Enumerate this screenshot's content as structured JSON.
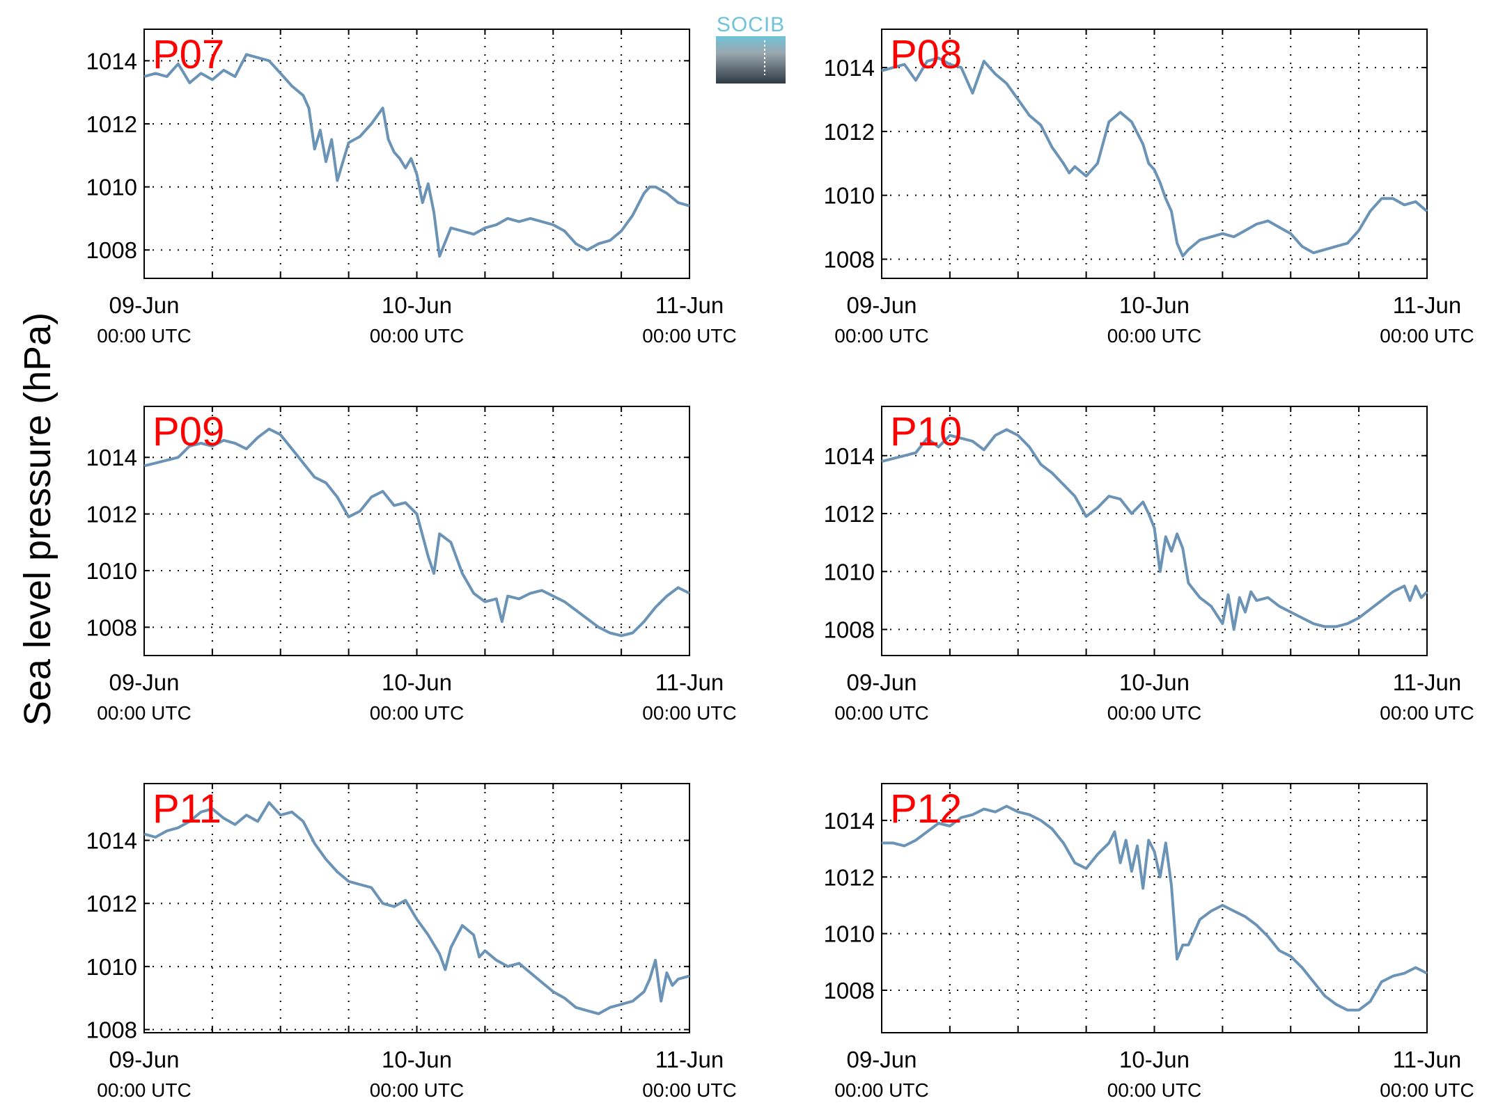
{
  "logo": {
    "text": "SOCIB"
  },
  "colors": {
    "series": "#6a93b6",
    "title": "#ff0000",
    "grid": "#000000"
  },
  "chart_data": {
    "type": "line",
    "ylabel": "Sea level pressure (hPa)",
    "x_ticks": [
      {
        "date": "09-Jun",
        "time": "00:00 UTC",
        "x": 0
      },
      {
        "date": "10-Jun",
        "time": "00:00 UTC",
        "x": 24
      },
      {
        "date": "11-Jun",
        "time": "00:00 UTC",
        "x": 48
      }
    ],
    "x_units": "hours after 09-Jun 00:00 UTC",
    "xlim": [
      0,
      48
    ],
    "x_grid_step": 6,
    "grid": "dotted",
    "panels": [
      {
        "title": "P07",
        "ylim": [
          1007.1,
          1015.0
        ],
        "yticks": [
          1008,
          1010,
          1012,
          1014
        ],
        "x": [
          0,
          1,
          2,
          3,
          4,
          5,
          6,
          7,
          8,
          9,
          10,
          11,
          12,
          13,
          14,
          14.5,
          15,
          15.5,
          16,
          16.5,
          17,
          18,
          19,
          20,
          21,
          21.5,
          22,
          22.5,
          23,
          23.5,
          24,
          24.5,
          25,
          25.5,
          26,
          27,
          28,
          29,
          30,
          31,
          32,
          33,
          34,
          35,
          36,
          37,
          38,
          39,
          40,
          41,
          42,
          43,
          44,
          44.5,
          45,
          46,
          47,
          48
        ],
        "y": [
          1013.5,
          1013.6,
          1013.5,
          1013.9,
          1013.3,
          1013.6,
          1013.4,
          1013.7,
          1013.5,
          1014.2,
          1014.1,
          1014.0,
          1013.6,
          1013.2,
          1012.9,
          1012.5,
          1011.2,
          1011.8,
          1010.8,
          1011.5,
          1010.2,
          1011.4,
          1011.6,
          1012.0,
          1012.5,
          1011.5,
          1011.1,
          1010.9,
          1010.6,
          1010.9,
          1010.4,
          1009.5,
          1010.1,
          1009.2,
          1007.8,
          1008.7,
          1008.6,
          1008.5,
          1008.7,
          1008.8,
          1009.0,
          1008.9,
          1009.0,
          1008.9,
          1008.8,
          1008.6,
          1008.2,
          1008.0,
          1008.2,
          1008.3,
          1008.6,
          1009.1,
          1009.8,
          1010.0,
          1010.0,
          1009.8,
          1009.5,
          1009.4
        ]
      },
      {
        "title": "P08",
        "ylim": [
          1007.4,
          1015.2
        ],
        "yticks": [
          1008,
          1010,
          1012,
          1014
        ],
        "x": [
          0,
          1,
          2,
          3,
          4,
          5,
          6,
          7,
          8,
          9,
          10,
          11,
          12,
          13,
          14,
          15,
          16,
          16.5,
          17,
          18,
          19,
          20,
          21,
          22,
          23,
          23.5,
          24,
          24.5,
          25,
          25.5,
          26,
          26.5,
          27,
          28,
          29,
          30,
          31,
          32,
          33,
          34,
          35,
          36,
          37,
          38,
          39,
          40,
          41,
          42,
          43,
          44,
          45,
          46,
          47,
          48
        ],
        "y": [
          1013.9,
          1014.0,
          1014.1,
          1013.6,
          1014.2,
          1014.3,
          1014.1,
          1014.0,
          1013.2,
          1014.2,
          1013.8,
          1013.5,
          1013.0,
          1012.5,
          1012.2,
          1011.5,
          1011.0,
          1010.7,
          1010.9,
          1010.6,
          1011.0,
          1012.3,
          1012.6,
          1012.3,
          1011.6,
          1011.0,
          1010.8,
          1010.4,
          1009.9,
          1009.5,
          1008.5,
          1008.1,
          1008.3,
          1008.6,
          1008.7,
          1008.8,
          1008.7,
          1008.9,
          1009.1,
          1009.2,
          1009.0,
          1008.8,
          1008.4,
          1008.2,
          1008.3,
          1008.4,
          1008.5,
          1008.9,
          1009.5,
          1009.9,
          1009.9,
          1009.7,
          1009.8,
          1009.5
        ]
      },
      {
        "title": "P09",
        "ylim": [
          1007.0,
          1015.8
        ],
        "yticks": [
          1008,
          1010,
          1012,
          1014
        ],
        "x": [
          0,
          1,
          2,
          3,
          4,
          5,
          6,
          7,
          8,
          9,
          10,
          11,
          12,
          13,
          14,
          15,
          16,
          17,
          18,
          19,
          20,
          21,
          22,
          23,
          24,
          25,
          25.5,
          26,
          27,
          28,
          29,
          30,
          31,
          31.5,
          32,
          33,
          34,
          35,
          36,
          37,
          38,
          39,
          40,
          41,
          42,
          43,
          44,
          45,
          46,
          47,
          48
        ],
        "y": [
          1013.7,
          1013.8,
          1013.9,
          1014.0,
          1014.4,
          1014.5,
          1014.4,
          1014.6,
          1014.5,
          1014.3,
          1014.7,
          1015.0,
          1014.8,
          1014.3,
          1013.8,
          1013.3,
          1013.1,
          1012.6,
          1011.9,
          1012.1,
          1012.6,
          1012.8,
          1012.3,
          1012.4,
          1012.0,
          1010.5,
          1009.9,
          1011.3,
          1011.0,
          1009.9,
          1009.2,
          1008.9,
          1009.0,
          1008.2,
          1009.1,
          1009.0,
          1009.2,
          1009.3,
          1009.1,
          1008.9,
          1008.6,
          1008.3,
          1008.0,
          1007.8,
          1007.7,
          1007.8,
          1008.2,
          1008.7,
          1009.1,
          1009.4,
          1009.2
        ]
      },
      {
        "title": "P10",
        "ylim": [
          1007.1,
          1015.7
        ],
        "yticks": [
          1008,
          1010,
          1012,
          1014
        ],
        "x": [
          0,
          1,
          2,
          3,
          4,
          5,
          6,
          7,
          8,
          9,
          10,
          11,
          12,
          13,
          14,
          15,
          16,
          17,
          18,
          19,
          20,
          21,
          22,
          23,
          23.5,
          24,
          24.5,
          25,
          25.5,
          26,
          26.5,
          27,
          28,
          29,
          30,
          30.5,
          31,
          31.5,
          32,
          32.5,
          33,
          34,
          35,
          36,
          37,
          38,
          39,
          40,
          41,
          42,
          43,
          44,
          45,
          46,
          46.5,
          47,
          47.5,
          48
        ],
        "y": [
          1013.8,
          1013.9,
          1014.0,
          1014.1,
          1014.6,
          1014.3,
          1014.7,
          1014.6,
          1014.5,
          1014.2,
          1014.7,
          1014.9,
          1014.7,
          1014.3,
          1013.7,
          1013.4,
          1013.0,
          1012.6,
          1011.9,
          1012.2,
          1012.6,
          1012.5,
          1012.0,
          1012.4,
          1012.0,
          1011.5,
          1010.0,
          1011.2,
          1010.7,
          1011.3,
          1010.8,
          1009.6,
          1009.1,
          1008.8,
          1008.2,
          1009.2,
          1008.0,
          1009.1,
          1008.6,
          1009.3,
          1009.0,
          1009.1,
          1008.8,
          1008.6,
          1008.4,
          1008.2,
          1008.1,
          1008.1,
          1008.2,
          1008.4,
          1008.7,
          1009.0,
          1009.3,
          1009.5,
          1009.0,
          1009.5,
          1009.1,
          1009.3
        ]
      },
      {
        "title": "P11",
        "ylim": [
          1007.9,
          1015.8
        ],
        "yticks": [
          1008,
          1010,
          1012,
          1014
        ],
        "x": [
          0,
          1,
          2,
          3,
          4,
          5,
          6,
          7,
          8,
          9,
          10,
          11,
          12,
          13,
          14,
          15,
          16,
          17,
          18,
          19,
          20,
          21,
          22,
          23,
          24,
          25,
          26,
          26.5,
          27,
          28,
          29,
          29.5,
          30,
          31,
          32,
          33,
          34,
          35,
          36,
          37,
          38,
          39,
          40,
          41,
          42,
          43,
          44,
          44.5,
          45,
          45.5,
          46,
          46.5,
          47,
          48
        ],
        "y": [
          1014.2,
          1014.1,
          1014.3,
          1014.4,
          1014.6,
          1014.9,
          1015.0,
          1014.7,
          1014.5,
          1014.8,
          1014.6,
          1015.2,
          1014.8,
          1014.9,
          1014.6,
          1013.9,
          1013.4,
          1013.0,
          1012.7,
          1012.6,
          1012.5,
          1012.0,
          1011.9,
          1012.1,
          1011.5,
          1011.0,
          1010.4,
          1009.9,
          1010.6,
          1011.3,
          1011.0,
          1010.3,
          1010.5,
          1010.2,
          1010.0,
          1010.1,
          1009.8,
          1009.5,
          1009.2,
          1009.0,
          1008.7,
          1008.6,
          1008.5,
          1008.7,
          1008.8,
          1008.9,
          1009.2,
          1009.6,
          1010.2,
          1008.9,
          1009.8,
          1009.4,
          1009.6,
          1009.7
        ]
      },
      {
        "title": "P12",
        "ylim": [
          1006.5,
          1015.3
        ],
        "yticks": [
          1008,
          1010,
          1012,
          1014
        ],
        "x": [
          0,
          1,
          2,
          3,
          4,
          5,
          6,
          7,
          8,
          9,
          10,
          11,
          12,
          13,
          14,
          15,
          16,
          17,
          18,
          19,
          20,
          20.5,
          21,
          21.5,
          22,
          22.5,
          23,
          23.5,
          24,
          24.5,
          25,
          25.5,
          26,
          26.5,
          27,
          28,
          29,
          30,
          31,
          32,
          33,
          34,
          35,
          36,
          37,
          38,
          39,
          40,
          41,
          42,
          43,
          44,
          45,
          46,
          47,
          48
        ],
        "y": [
          1013.2,
          1013.2,
          1013.1,
          1013.3,
          1013.6,
          1013.9,
          1013.8,
          1014.1,
          1014.2,
          1014.4,
          1014.3,
          1014.5,
          1014.3,
          1014.2,
          1014.0,
          1013.7,
          1013.2,
          1012.5,
          1012.3,
          1012.8,
          1013.2,
          1013.6,
          1012.5,
          1013.3,
          1012.2,
          1013.1,
          1011.6,
          1013.3,
          1012.9,
          1012.0,
          1013.2,
          1011.7,
          1009.1,
          1009.6,
          1009.6,
          1010.5,
          1010.8,
          1011.0,
          1010.8,
          1010.6,
          1010.3,
          1009.9,
          1009.4,
          1009.2,
          1008.8,
          1008.3,
          1007.8,
          1007.5,
          1007.3,
          1007.3,
          1007.6,
          1008.3,
          1008.5,
          1008.6,
          1008.8,
          1008.6
        ]
      }
    ]
  }
}
